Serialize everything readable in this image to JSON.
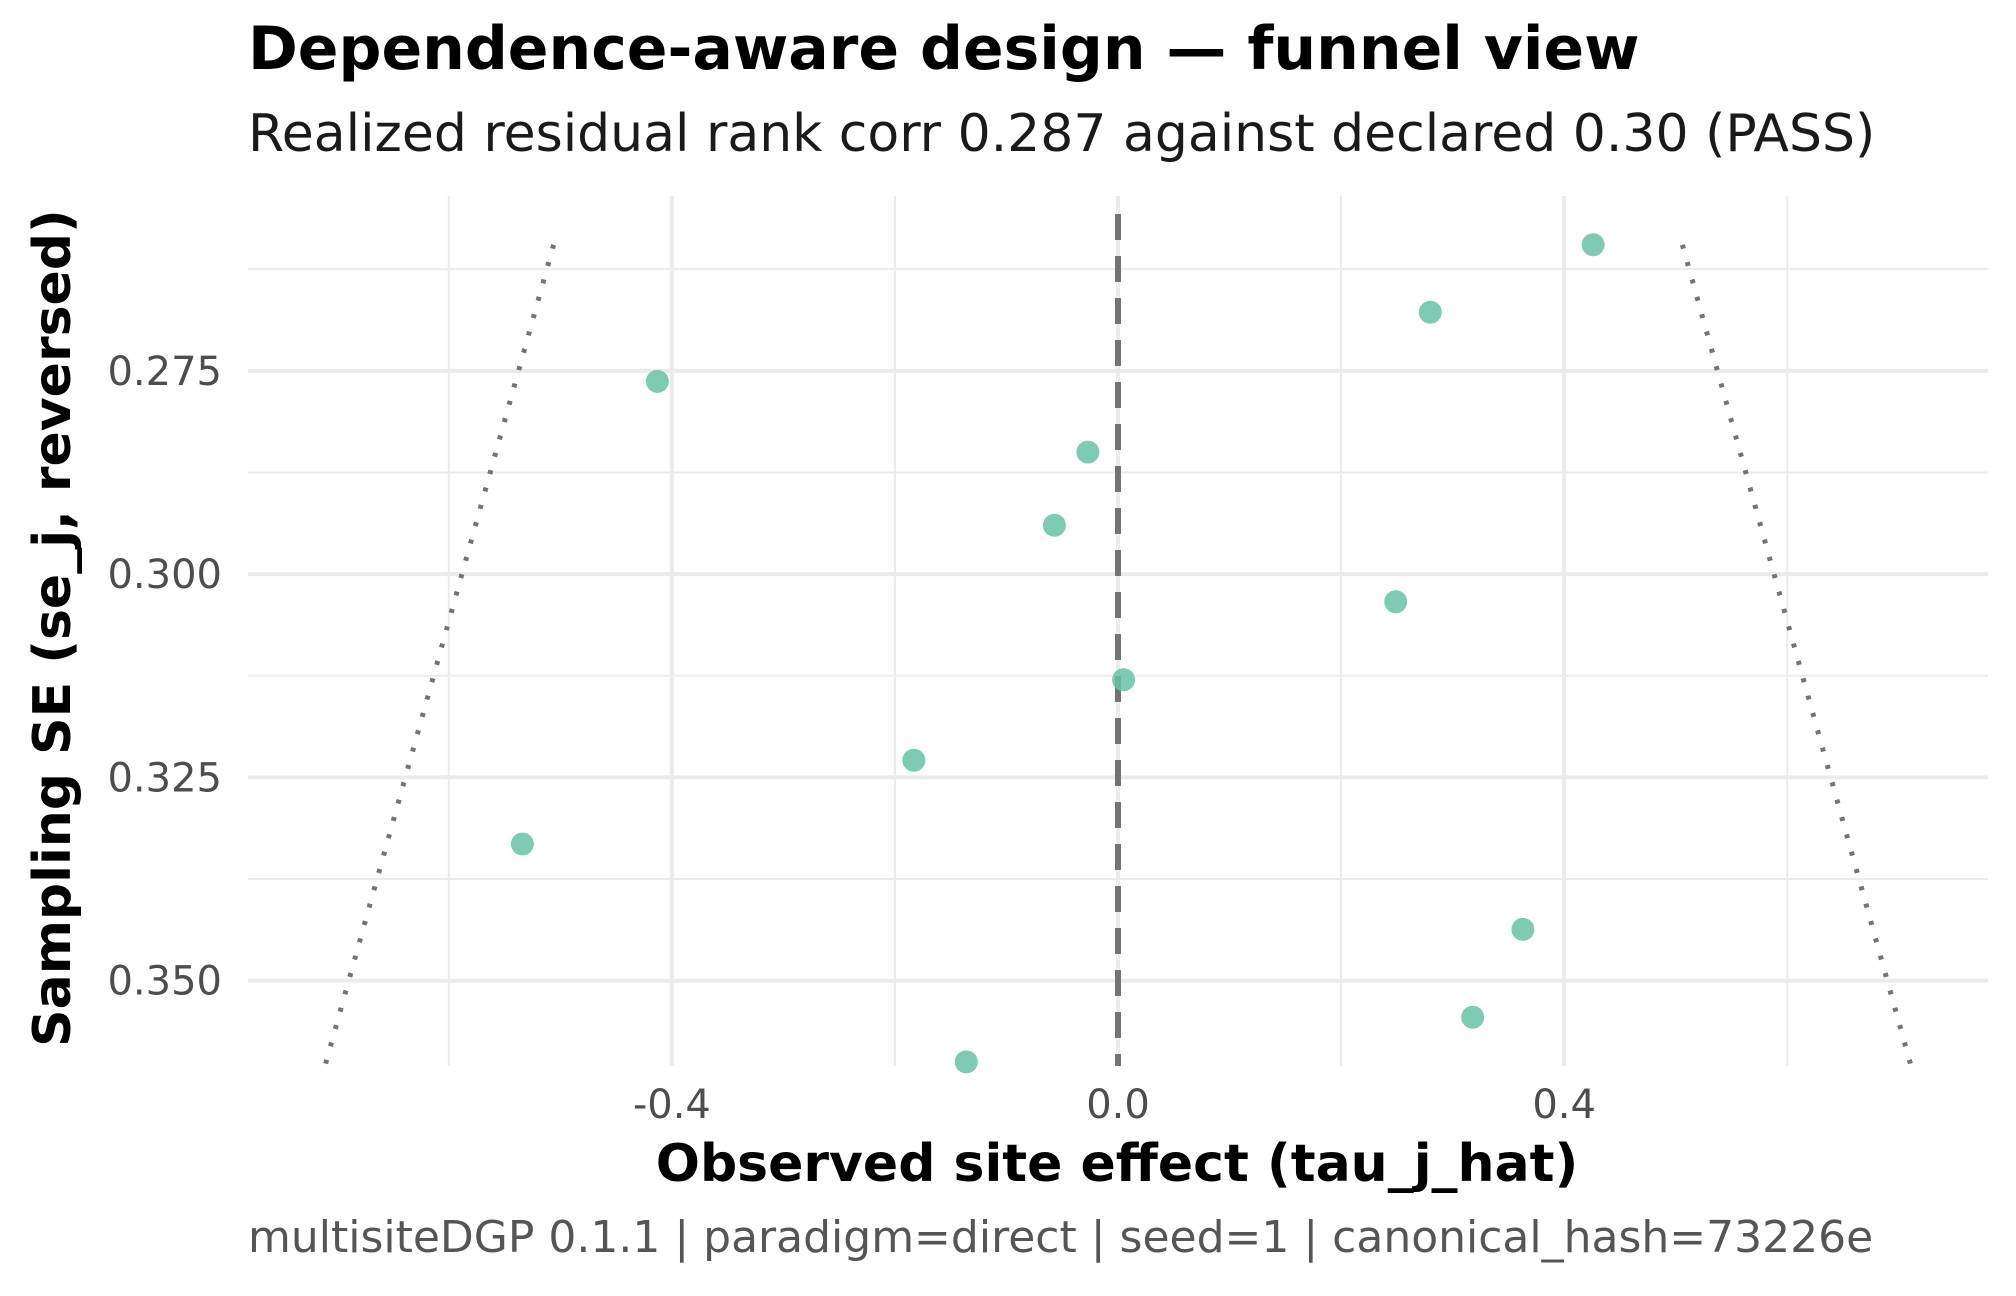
{
  "title": "Dependence-aware design — funnel view",
  "subtitle": "Realized residual rank corr 0.287 against declared 0.30 (PASS)",
  "caption": "multisiteDGP 0.1.1 | paradigm=direct | seed=1 | canonical_hash=73226e",
  "chart_data": {
    "type": "scatter",
    "xlabel": "Observed site effect (tau_j_hat)",
    "ylabel": "Sampling SE (se_j, reversed)",
    "xlim": [
      -0.78,
      0.78
    ],
    "ylim": [
      0.2535,
      0.3605
    ],
    "y_reversed": true,
    "x_ticks": [
      -0.4,
      0.0,
      0.4
    ],
    "x_tick_labels": [
      "-0.4",
      "0.0",
      "0.4"
    ],
    "y_ticks": [
      0.275,
      0.3,
      0.325,
      0.35
    ],
    "y_tick_labels": [
      "0.275",
      "0.300",
      "0.325",
      "0.350"
    ],
    "grid": true,
    "point_color": "#66c2a5",
    "reference_line_color": "#737373",
    "funnel_color": "#737373",
    "points": [
      {
        "x": 0.426,
        "y": 0.2595
      },
      {
        "x": 0.28,
        "y": 0.2678
      },
      {
        "x": -0.413,
        "y": 0.2763
      },
      {
        "x": -0.027,
        "y": 0.285
      },
      {
        "x": -0.057,
        "y": 0.294
      },
      {
        "x": 0.249,
        "y": 0.3034
      },
      {
        "x": 0.005,
        "y": 0.313
      },
      {
        "x": -0.183,
        "y": 0.3229
      },
      {
        "x": -0.534,
        "y": 0.3332
      },
      {
        "x": 0.363,
        "y": 0.3437
      },
      {
        "x": 0.318,
        "y": 0.3545
      },
      {
        "x": -0.136,
        "y": 0.36
      }
    ],
    "reference_line": {
      "x": 0.0
    },
    "funnel": {
      "left": [
        {
          "x": -0.506,
          "y": 0.2595
        },
        {
          "x": -0.711,
          "y": 0.3605
        }
      ],
      "right": [
        {
          "x": 0.506,
          "y": 0.2595
        },
        {
          "x": 0.711,
          "y": 0.3605
        }
      ]
    }
  }
}
